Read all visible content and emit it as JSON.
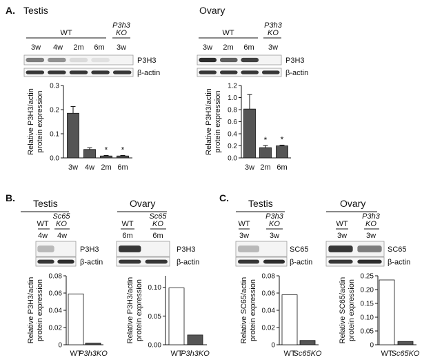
{
  "panels": [
    {
      "id": "A-testis",
      "letter": "A.",
      "title": "Testis",
      "header": {
        "group": "WT",
        "ko": [
          "P3h3",
          "KO"
        ]
      },
      "lanes": [
        "3w",
        "4w",
        "2m",
        "6m",
        "3w"
      ],
      "bands": [
        "P3H3",
        "β-actin"
      ],
      "chart_data": {
        "type": "bar",
        "categories": [
          "3w",
          "4w",
          "2m",
          "6m"
        ],
        "values": [
          0.185,
          0.035,
          0.008,
          0.008
        ],
        "errors": [
          0.028,
          0.007,
          0.002,
          0.002
        ],
        "significant": [
          false,
          false,
          true,
          true
        ],
        "ylabel": "Relative P3H3/actin protein expression",
        "ylim": [
          0,
          0.3
        ],
        "yticks": [
          "0.0",
          "0.1",
          "0.2",
          "0.3"
        ],
        "bar_color": "#555555"
      }
    },
    {
      "id": "A-ovary",
      "letter": "",
      "title": "Ovary",
      "header": {
        "group": "WT",
        "ko": [
          "P3h3",
          "KO"
        ]
      },
      "lanes": [
        "3w",
        "2m",
        "6m",
        "3w"
      ],
      "bands": [
        "P3H3",
        "β-actin"
      ],
      "chart_data": {
        "type": "bar",
        "categories": [
          "3w",
          "2m",
          "6m"
        ],
        "values": [
          0.81,
          0.17,
          0.2
        ],
        "errors": [
          0.24,
          0.035,
          0.012
        ],
        "significant": [
          false,
          true,
          true
        ],
        "ylabel": "Relative P3H3/actin protein expression",
        "ylim": [
          0,
          1.2
        ],
        "yticks": [
          "0.0",
          "0.2",
          "0.4",
          "0.6",
          "0.8",
          "1.0",
          "1.2"
        ],
        "bar_color": "#555555"
      }
    },
    {
      "id": "B-testis",
      "letter": "B.",
      "title": "Testis",
      "header": {
        "group": "WT",
        "ko": [
          "Sc65",
          "KO"
        ]
      },
      "lanes": [
        "4w",
        "4w"
      ],
      "bands": [
        "P3H3",
        "β-actin"
      ],
      "chart_data": {
        "type": "bar",
        "categories": [
          "WT",
          "P3h3KO"
        ],
        "values": [
          0.059,
          0.002
        ],
        "fills": [
          "#ffffff",
          "#555555"
        ],
        "ylabel": "Relative P3H3/actin protein expression",
        "ylim": [
          0,
          0.08
        ],
        "yticks": [
          "0",
          "0.02",
          "0.04",
          "0.06",
          "0.08"
        ]
      }
    },
    {
      "id": "B-ovary",
      "letter": "",
      "title": "Ovary",
      "header": {
        "group": "WT",
        "ko": [
          "Sc65",
          "KO"
        ]
      },
      "lanes": [
        "6m",
        "6m"
      ],
      "bands": [
        "P3H3",
        "β-actin"
      ],
      "chart_data": {
        "type": "bar",
        "categories": [
          "WT",
          "P3h3KO"
        ],
        "values": [
          0.099,
          0.017
        ],
        "fills": [
          "#ffffff",
          "#555555"
        ],
        "ylabel": "Relative P3H3/actin protein expression",
        "ylim": [
          0,
          0.12
        ],
        "yticks": [
          "0.00",
          "0.05",
          "0.10"
        ]
      }
    },
    {
      "id": "C-testis",
      "letter": "C.",
      "title": "Testis",
      "header": {
        "group": "WT",
        "ko": [
          "P3h3",
          "KO"
        ]
      },
      "lanes": [
        "3w",
        "3w"
      ],
      "bands": [
        "SC65",
        "β-actin"
      ],
      "chart_data": {
        "type": "bar",
        "categories": [
          "WT",
          "Sc65KO"
        ],
        "values": [
          0.058,
          0.005
        ],
        "fills": [
          "#ffffff",
          "#555555"
        ],
        "ylabel": "Relative SC65/actin protein expression",
        "ylim": [
          0,
          0.08
        ],
        "yticks": [
          "0",
          "0.02",
          "0.04",
          "0.06",
          "0.08"
        ]
      }
    },
    {
      "id": "C-ovary",
      "letter": "",
      "title": "Ovary",
      "header": {
        "group": "WT",
        "ko": [
          "P3h3",
          "KO"
        ]
      },
      "lanes": [
        "3w",
        "3w"
      ],
      "bands": [
        "SC65",
        "β-actin"
      ],
      "chart_data": {
        "type": "bar",
        "categories": [
          "WT",
          "Sc65KO"
        ],
        "values": [
          0.235,
          0.012
        ],
        "fills": [
          "#ffffff",
          "#555555"
        ],
        "ylabel": "Relative SC65/actin protein expression",
        "ylim": [
          0,
          0.25
        ],
        "yticks": [
          "0",
          "0.05",
          "0.10",
          "0.15",
          "0.20",
          "0.25"
        ]
      }
    }
  ]
}
